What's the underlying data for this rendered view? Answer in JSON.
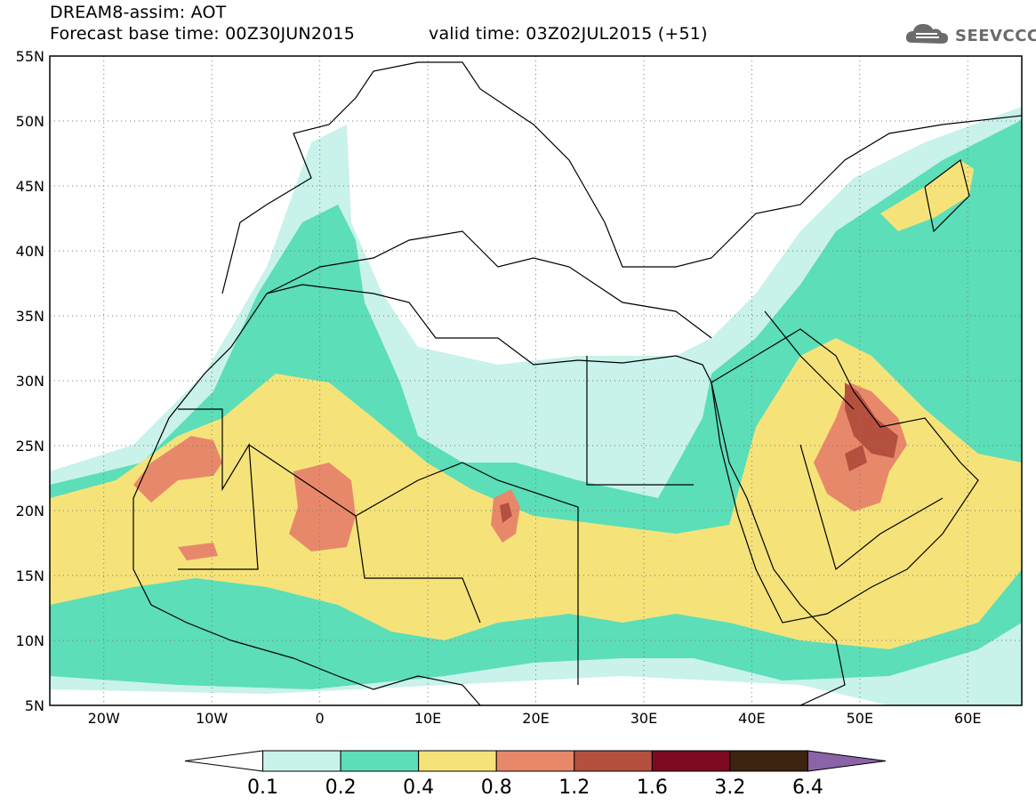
{
  "header": {
    "line1": "DREAM8-assim: AOT",
    "line2": "Forecast base time: 00Z30JUN2015",
    "valid": "valid time: 03Z02JUL2015 (+51)",
    "logo_text": "SEEVCCC"
  },
  "map": {
    "lat_labels": [
      "55N",
      "50N",
      "45N",
      "40N",
      "35N",
      "30N",
      "25N",
      "20N",
      "15N",
      "10N",
      "5N"
    ],
    "lon_labels": [
      "20W",
      "10W",
      "0",
      "10E",
      "20E",
      "30E",
      "40E",
      "50E",
      "60E"
    ],
    "lat_range": [
      5,
      55
    ],
    "lon_range": [
      -25,
      65
    ],
    "gridlines": "dotted"
  },
  "legend": {
    "labels": [
      "0.1",
      "0.2",
      "0.4",
      "0.8",
      "1.2",
      "1.6",
      "3.2",
      "6.4"
    ],
    "colors": [
      "#ffffff",
      "#c8f2ea",
      "#5cdeb8",
      "#f5e37a",
      "#e8886a",
      "#b5503f",
      "#7d0a20",
      "#3d2410",
      "#8b63a8"
    ]
  },
  "colors": {
    "c1": "#c8f2ea",
    "c2": "#5cdeb8",
    "c3": "#f5e37a",
    "c4": "#e8886a",
    "c5": "#b5503f",
    "c6": "#7d0a20"
  }
}
